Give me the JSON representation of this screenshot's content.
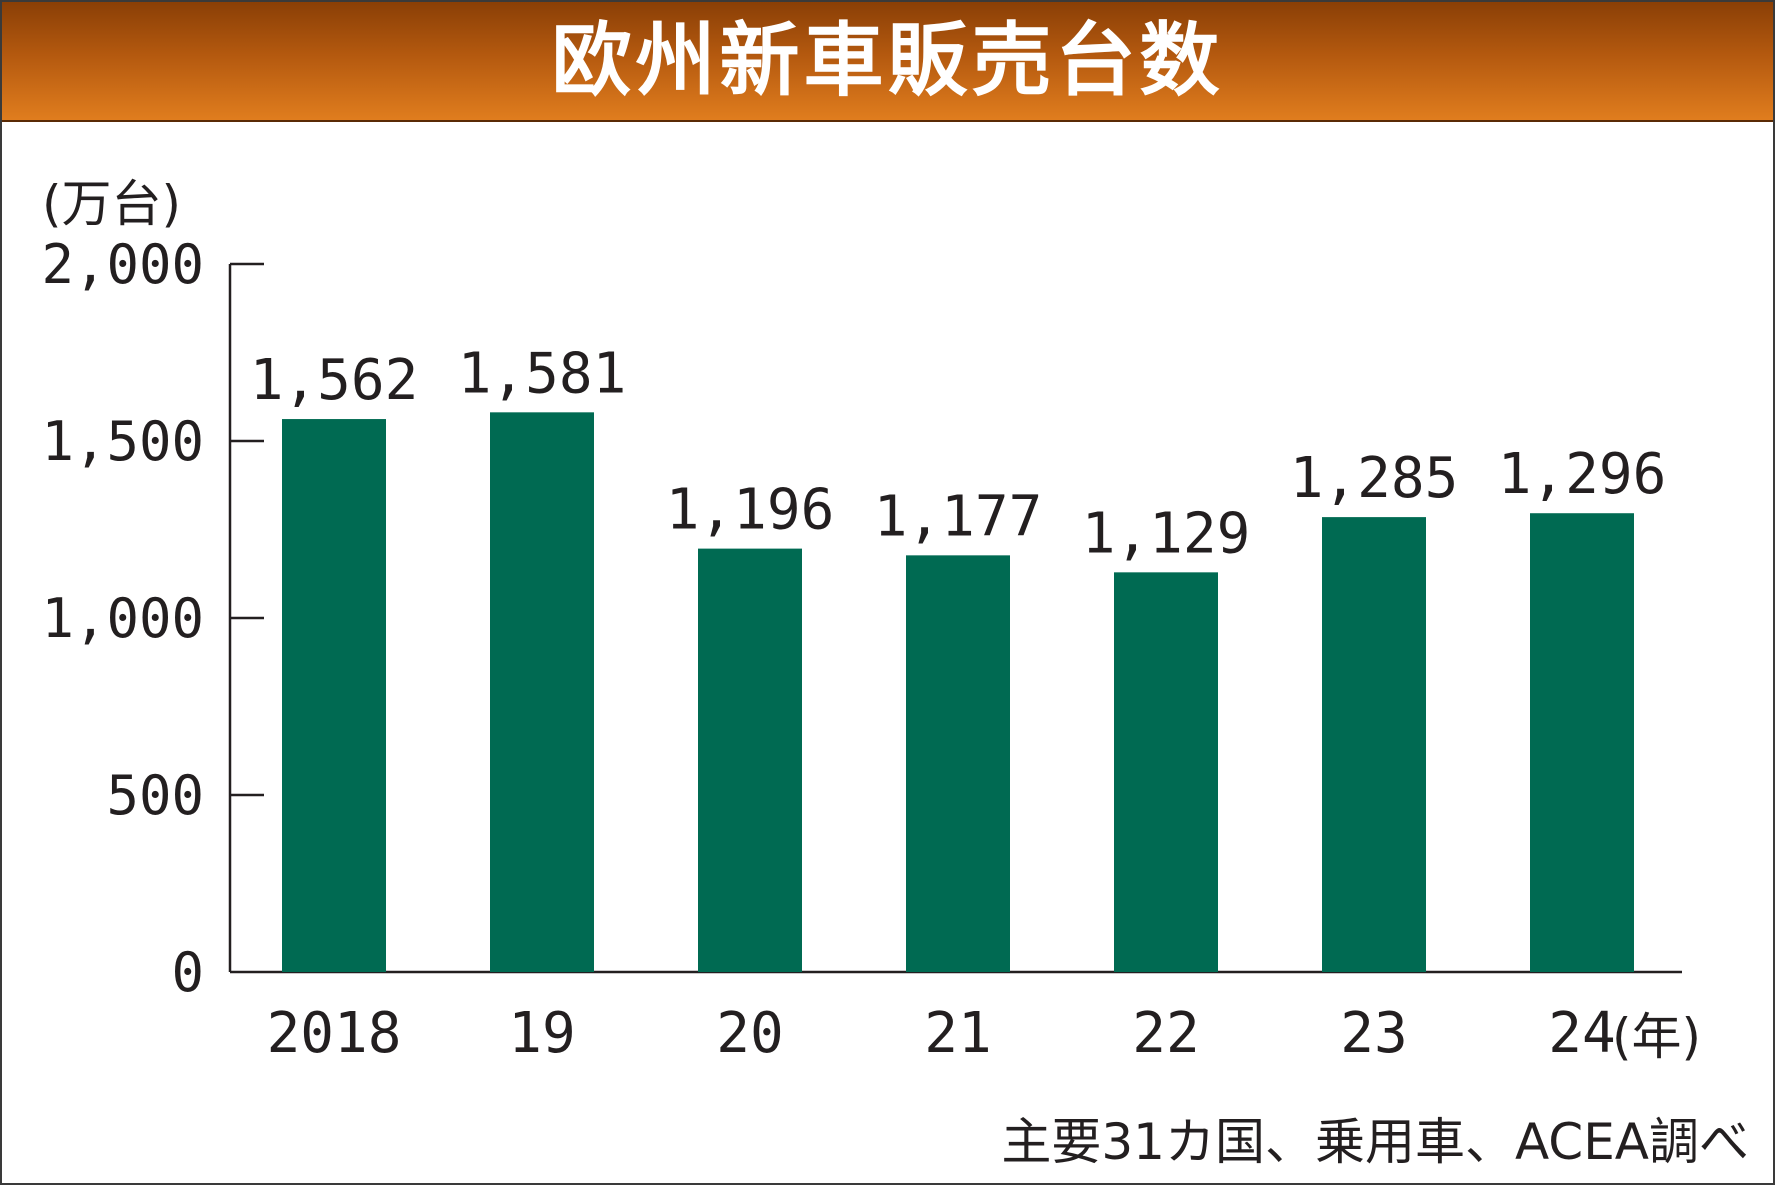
{
  "colors": {
    "bar": "#006a52",
    "title_bg": "#c4661a",
    "text": "#231f20"
  },
  "chart_data": {
    "type": "bar",
    "title": "欧州新車販売台数",
    "y_unit": "(万台)",
    "x_unit": "(年)",
    "categories": [
      "2018",
      "19",
      "20",
      "21",
      "22",
      "23",
      "24"
    ],
    "values": [
      1562,
      1581,
      1196,
      1177,
      1129,
      1285,
      1296
    ],
    "value_labels": [
      "1,562",
      "1,581",
      "1,196",
      "1,177",
      "1,129",
      "1,285",
      "1,296"
    ],
    "ylim": [
      0,
      2000
    ],
    "y_ticks": [
      0,
      500,
      1000,
      1500,
      2000
    ],
    "y_tick_labels": [
      "0",
      "500",
      "1,000",
      "1,500",
      "2,000"
    ],
    "grid": false,
    "source": "主要31カ国、乗用車、ACEA調べ"
  }
}
